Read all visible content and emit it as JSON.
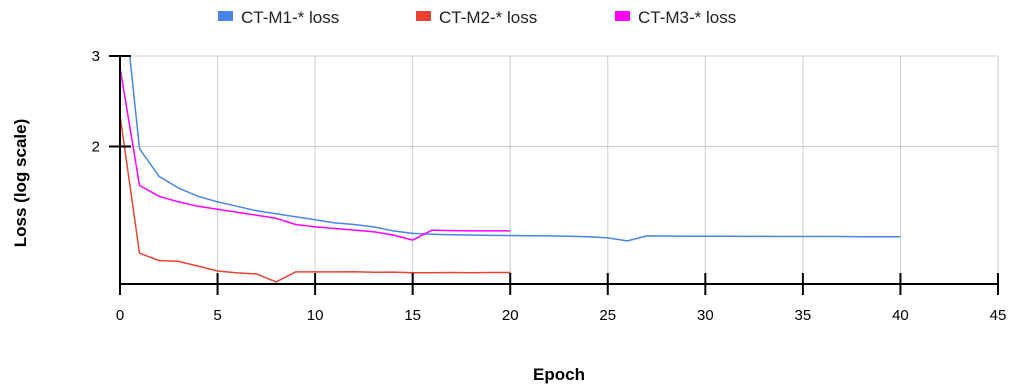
{
  "chart_data": {
    "type": "line",
    "title": "",
    "xlabel": "Epoch",
    "ylabel": "Loss (log scale)",
    "xlim": [
      0,
      45
    ],
    "ylim": [
      1.08,
      3.0
    ],
    "yscale": "log",
    "grid": true,
    "legend_position": "top",
    "x_ticks": [
      "0",
      "5",
      "10",
      "15",
      "20",
      "25",
      "30",
      "35",
      "40",
      "45"
    ],
    "x_tick_values": [
      0,
      5,
      10,
      15,
      20,
      25,
      30,
      35,
      40,
      45
    ],
    "y_ticks": [
      "2",
      "3"
    ],
    "y_tick_values": [
      2,
      3
    ],
    "series": [
      {
        "name": "CT-M1-* loss",
        "color": "#4a86e8",
        "x": [
          0.5,
          1,
          2,
          3,
          4,
          5,
          6,
          7,
          8,
          9,
          10,
          11,
          12,
          13,
          14,
          15,
          16,
          17,
          18,
          19,
          20,
          21,
          22,
          23,
          24,
          25,
          26,
          27,
          28,
          29,
          30,
          31,
          32,
          33,
          34,
          35,
          36,
          37,
          38,
          39,
          40
        ],
        "y": [
          3.0,
          1.98,
          1.75,
          1.66,
          1.6,
          1.56,
          1.53,
          1.5,
          1.48,
          1.46,
          1.44,
          1.42,
          1.41,
          1.395,
          1.37,
          1.355,
          1.35,
          1.347,
          1.345,
          1.343,
          1.342,
          1.341,
          1.34,
          1.338,
          1.335,
          1.328,
          1.31,
          1.34,
          1.339,
          1.338,
          1.338,
          1.338,
          1.337,
          1.337,
          1.336,
          1.336,
          1.336,
          1.336,
          1.335,
          1.335,
          1.335
        ]
      },
      {
        "name": "CT-M2-* loss",
        "color": "#ea4335",
        "x": [
          0,
          1,
          2,
          3,
          4,
          5,
          6,
          7,
          8,
          9,
          10,
          11,
          12,
          13,
          14,
          15,
          16,
          17,
          18,
          19,
          20
        ],
        "y": [
          2.3,
          1.24,
          1.2,
          1.195,
          1.17,
          1.145,
          1.135,
          1.13,
          1.09,
          1.14,
          1.14,
          1.14,
          1.141,
          1.138,
          1.139,
          1.136,
          1.136,
          1.137,
          1.136,
          1.137,
          1.137
        ]
      },
      {
        "name": "CT-M3-* loss",
        "color": "#ff00ff",
        "x": [
          0,
          1,
          2,
          3,
          4,
          5,
          6,
          7,
          8,
          9,
          10,
          11,
          12,
          13,
          14,
          15,
          16,
          17,
          18,
          19,
          20
        ],
        "y": [
          2.85,
          1.68,
          1.6,
          1.56,
          1.53,
          1.51,
          1.49,
          1.47,
          1.45,
          1.41,
          1.395,
          1.385,
          1.375,
          1.365,
          1.345,
          1.315,
          1.375,
          1.372,
          1.37,
          1.37,
          1.37
        ]
      }
    ]
  }
}
